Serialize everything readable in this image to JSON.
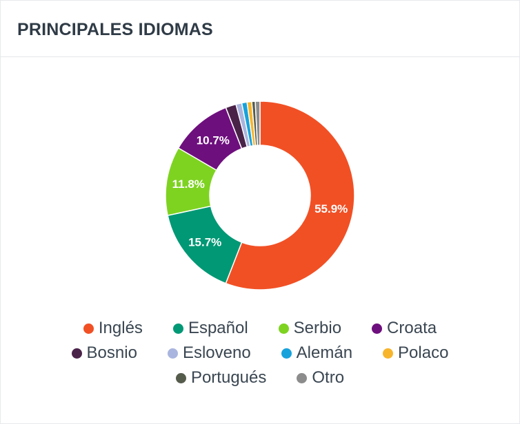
{
  "header": {
    "title": "PRINCIPALES IDIOMAS"
  },
  "chart_data": {
    "type": "pie",
    "title": "",
    "slices": [
      {
        "name": "Inglés",
        "value": 55.9,
        "label": "55.9%",
        "color": "#f15025"
      },
      {
        "name": "Español",
        "value": 15.7,
        "label": "15.7%",
        "color": "#019875"
      },
      {
        "name": "Serbio",
        "value": 11.8,
        "label": "11.8%",
        "color": "#7ed321"
      },
      {
        "name": "Croata",
        "value": 10.7,
        "label": "10.7%",
        "color": "#6e0f7e"
      },
      {
        "name": "Bosnio",
        "value": 1.8,
        "label": "",
        "color": "#4a2349"
      },
      {
        "name": "Esloveno",
        "value": 1.0,
        "label": "",
        "color": "#a9b5de"
      },
      {
        "name": "Alemán",
        "value": 0.9,
        "label": "",
        "color": "#17a2dc"
      },
      {
        "name": "Polaco",
        "value": 0.8,
        "label": "",
        "color": "#f7b52c"
      },
      {
        "name": "Portugués",
        "value": 0.6,
        "label": "",
        "color": "#565c4c"
      },
      {
        "name": "Otro",
        "value": 0.8,
        "label": "",
        "color": "#8c8c8c"
      }
    ],
    "legend_position": "bottom"
  },
  "legend": {
    "rows": [
      [
        0,
        1,
        2,
        3
      ],
      [
        4,
        5,
        6,
        7
      ],
      [
        8,
        9
      ]
    ]
  }
}
